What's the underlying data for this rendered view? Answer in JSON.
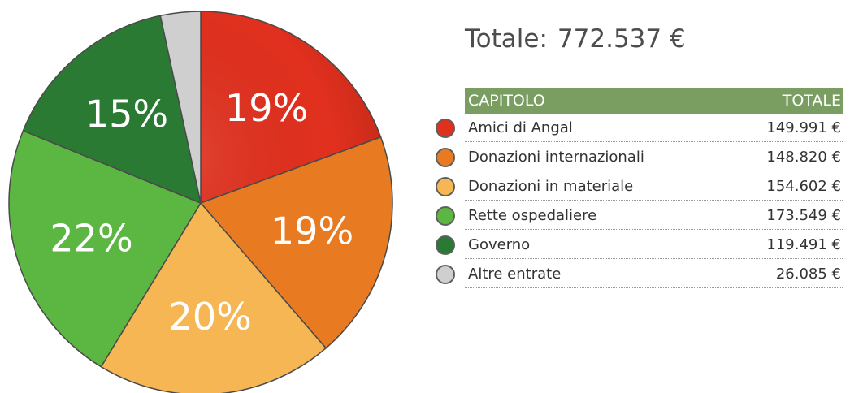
{
  "chart_data": {
    "type": "pie",
    "slices": [
      {
        "label": "Amici di Angal",
        "value": 149991,
        "display": "149.991 €",
        "percent_label": "19%",
        "color": "#e2301e"
      },
      {
        "label": "Donazioni internazionali",
        "value": 148820,
        "display": "148.820 €",
        "percent_label": "19%",
        "color": "#e87a22"
      },
      {
        "label": "Donazioni in materiale",
        "value": 154602,
        "display": "154.602 €",
        "percent_label": "20%",
        "color": "#f5b653"
      },
      {
        "label": "Rette ospedaliere",
        "value": 173549,
        "display": "173.549 €",
        "percent_label": "22%",
        "color": "#5cb642"
      },
      {
        "label": "Governo",
        "value": 119491,
        "display": "119.491 €",
        "percent_label": "15%",
        "color": "#2a7a34"
      },
      {
        "label": "Altre entrate",
        "value": 26085,
        "display": "26.085 €",
        "percent_label": "",
        "color": "#cfcfcf"
      }
    ],
    "total_label": "Totale:",
    "total_value": "772.537 €",
    "legend_headers": {
      "category": "CAPITOLO",
      "total": "TOTALE"
    },
    "legend_placement": "right"
  }
}
